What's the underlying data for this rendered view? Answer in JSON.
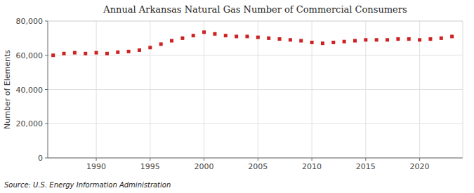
{
  "chart_data": {
    "type": "line",
    "title": "Annual Arkansas Natural Gas Number of Commercial Consumers",
    "ylabel": "Number of Elements",
    "source": "Source: U.S. Energy Information Administration",
    "x": [
      1986,
      1987,
      1988,
      1989,
      1990,
      1991,
      1992,
      1993,
      1994,
      1995,
      1996,
      1997,
      1998,
      1999,
      2000,
      2001,
      2002,
      2003,
      2004,
      2005,
      2006,
      2007,
      2008,
      2009,
      2010,
      2011,
      2012,
      2013,
      2014,
      2015,
      2016,
      2017,
      2018,
      2019,
      2020,
      2021,
      2022,
      2023
    ],
    "values": [
      60000,
      61000,
      61500,
      61000,
      61500,
      61000,
      61800,
      62200,
      63000,
      64500,
      66500,
      68500,
      70000,
      71500,
      73500,
      72500,
      71500,
      71000,
      71000,
      70500,
      70000,
      69500,
      69000,
      68500,
      67500,
      67000,
      67500,
      68000,
      68500,
      69000,
      69000,
      69000,
      69500,
      69500,
      69000,
      69500,
      70000,
      71000
    ],
    "color": "#cc2222",
    "marker": "square",
    "line_style": "none",
    "xlim": [
      1985.5,
      2024
    ],
    "ylim": [
      0,
      80000
    ],
    "xticks": [
      1990,
      1995,
      2000,
      2005,
      2010,
      2015,
      2020
    ],
    "yticks": [
      0,
      {
        "value": 20000,
        "label": "20,000"
      },
      {
        "value": 40000,
        "label": "40,000"
      },
      {
        "value": 60000,
        "label": "60,000"
      },
      {
        "value": 80000,
        "label": "80,000"
      }
    ],
    "grid": true
  }
}
